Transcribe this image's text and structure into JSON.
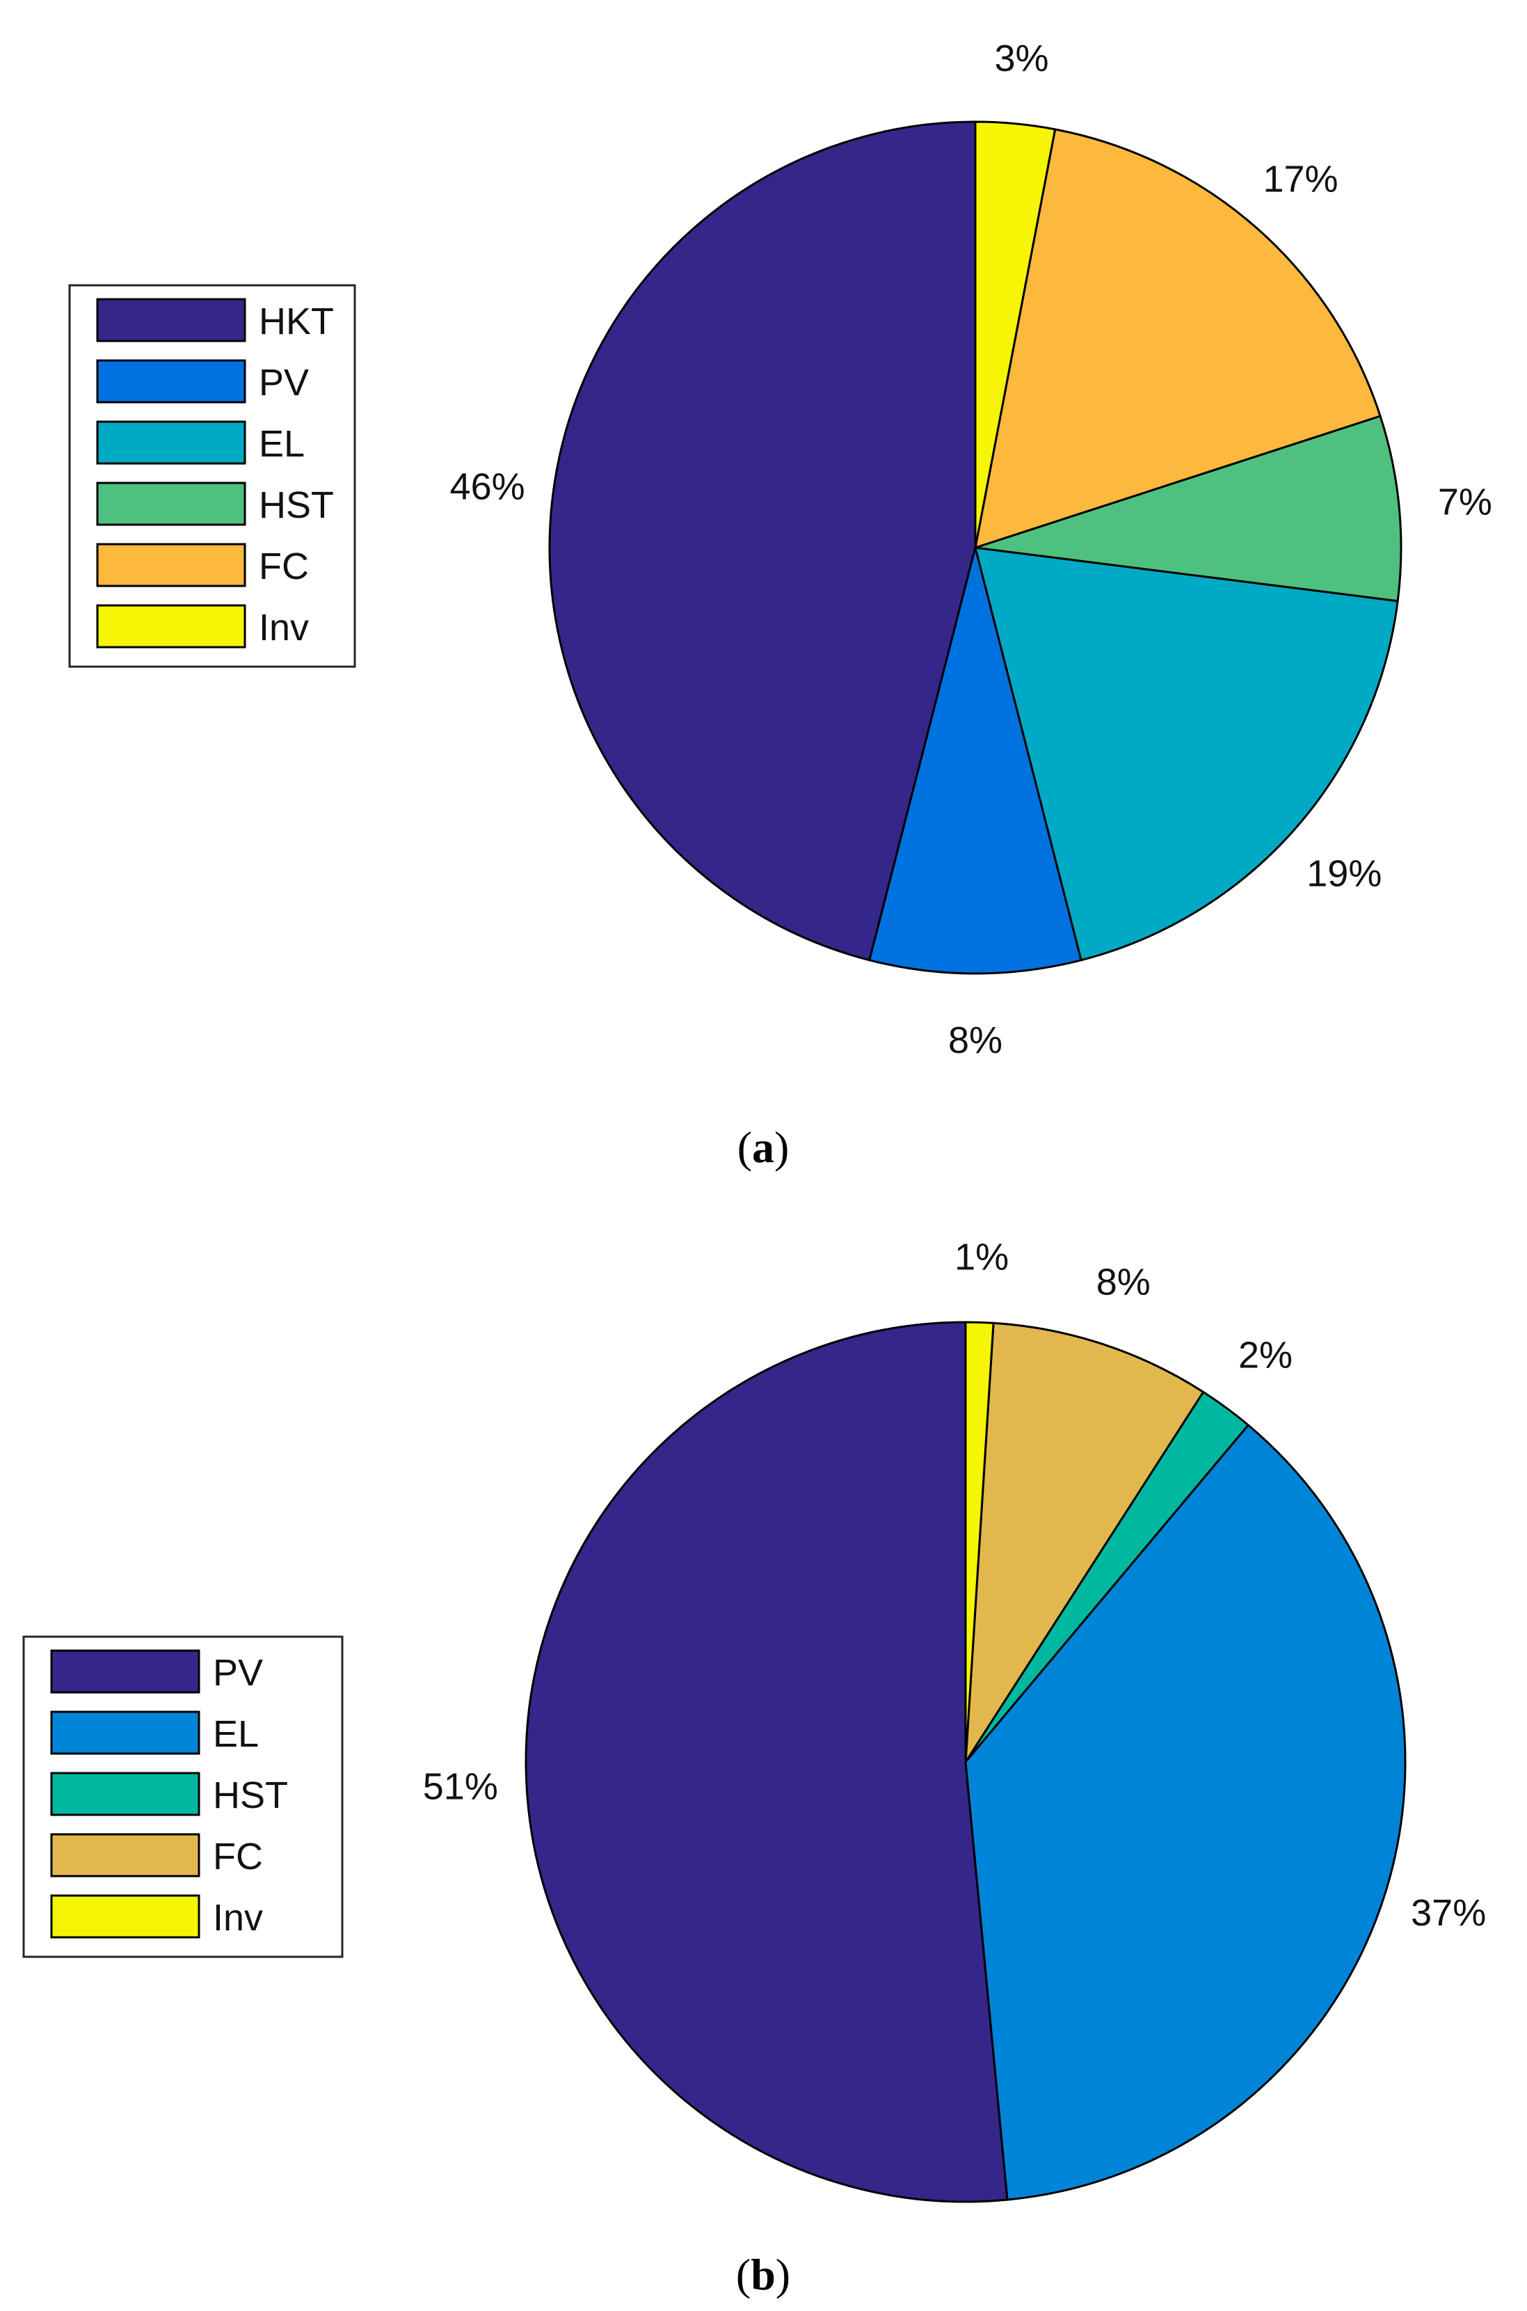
{
  "chart_data": [
    {
      "type": "pie",
      "caption_letter": "a",
      "categories": [
        "HKT",
        "PV",
        "EL",
        "HST",
        "FC",
        "Inv"
      ],
      "values": [
        46,
        8,
        19,
        7,
        17,
        3
      ],
      "labels": [
        "46%",
        "8%",
        "19%",
        "7%",
        "17%",
        "3%"
      ],
      "colors": [
        "#35268A",
        "#0072E0",
        "#00AAC4",
        "#4EC17E",
        "#FDB83E",
        "#F5F505"
      ],
      "legend": {
        "position": "left",
        "entries": [
          "HKT",
          "PV",
          "EL",
          "HST",
          "FC",
          "Inv"
        ]
      },
      "direction": "counterclockwise",
      "start": "top"
    },
    {
      "type": "pie",
      "caption_letter": "b",
      "categories": [
        "PV",
        "EL",
        "HST",
        "FC",
        "Inv"
      ],
      "values": [
        51,
        37,
        2,
        8,
        1
      ],
      "labels": [
        "51%",
        "37%",
        "2%",
        "8%",
        "1%"
      ],
      "colors": [
        "#35268A",
        "#0084D8",
        "#00B8A0",
        "#E2B84E",
        "#F5F505"
      ],
      "legend": {
        "position": "left",
        "entries": [
          "PV",
          "EL",
          "HST",
          "FC",
          "Inv"
        ]
      },
      "direction": "counterclockwise",
      "start": "top"
    }
  ]
}
